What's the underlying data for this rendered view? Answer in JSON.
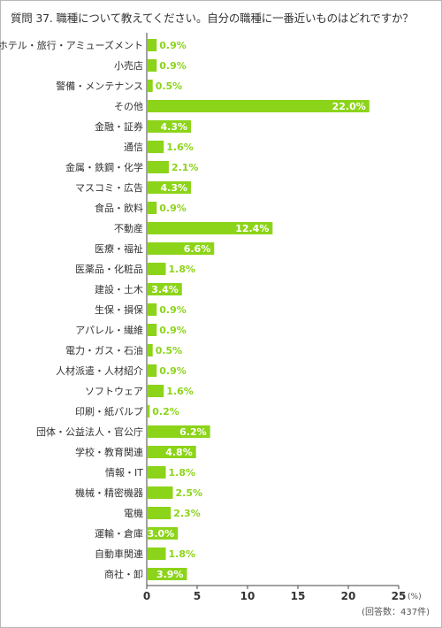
{
  "question": {
    "prefix": "質問",
    "number": "37.",
    "text": "職種について教えてください。自分の職種に一番近いものはどれですか？"
  },
  "note": "(回答数：437件)",
  "colors": {
    "bar": "#8cd419",
    "value_outside": "#8cd419",
    "value_inside": "#ffffff"
  },
  "chart_data": {
    "type": "bar",
    "orientation": "horizontal",
    "categories": [
      "ホテル・旅行・アミューズメント",
      "小売店",
      "警備・メンテナンス",
      "その他",
      "金融・証券",
      "通信",
      "金属・鉄鋼・化学",
      "マスコミ・広告",
      "食品・飲料",
      "不動産",
      "医療・福祉",
      "医薬品・化粧品",
      "建設・土木",
      "生保・損保",
      "アパレル・繊維",
      "電力・ガス・石油",
      "人材派遣・人材紹介",
      "ソフトウェア",
      "印刷・紙パルプ",
      "団体・公益法人・官公庁",
      "学校・教育関連",
      "情報・IT",
      "機械・精密機器",
      "電機",
      "運輸・倉庫",
      "自動車関連",
      "商社・卸"
    ],
    "values": [
      0.9,
      0.9,
      0.5,
      22.0,
      4.3,
      1.6,
      2.1,
      4.3,
      0.9,
      12.4,
      6.6,
      1.8,
      3.4,
      0.9,
      0.9,
      0.5,
      0.9,
      1.6,
      0.2,
      6.2,
      4.8,
      1.8,
      2.5,
      2.3,
      3.0,
      1.8,
      3.9
    ],
    "value_labels": [
      "0.9%",
      "0.9%",
      "0.5%",
      "22.0%",
      "4.3%",
      "1.6%",
      "2.1%",
      "4.3%",
      "0.9%",
      "12.4%",
      "6.6%",
      "1.8%",
      "3.4%",
      "0.9%",
      "0.9%",
      "0.5%",
      "0.9%",
      "1.6%",
      "0.2%",
      "6.2%",
      "4.8%",
      "1.8%",
      "2.5%",
      "2.3%",
      "3.0%",
      "1.8%",
      "3.9%"
    ],
    "xlim": [
      0,
      25
    ],
    "xticks": [
      0,
      5,
      10,
      15,
      20,
      25
    ],
    "xtick_labels": [
      "0",
      "5",
      "10",
      "15",
      "20",
      "25"
    ],
    "x_unit": "(%)",
    "grid": false
  }
}
